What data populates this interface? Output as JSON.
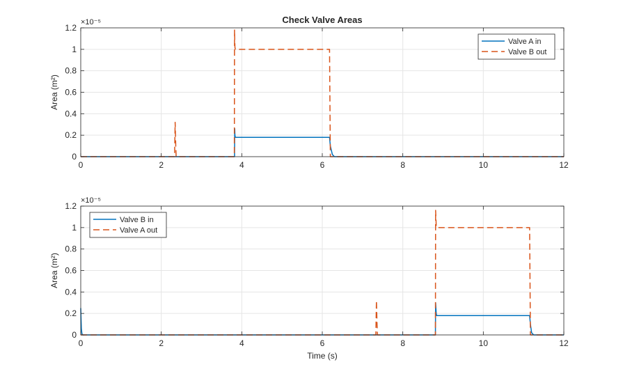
{
  "figure": {
    "title": "Check Valve Areas",
    "xlabel": "Time (s)"
  },
  "chart_data": [
    {
      "type": "line",
      "title": "Check Valve Areas",
      "xlabel": "",
      "ylabel": "Area  (m²)",
      "y_exponent": "×10⁻⁵",
      "xlim": [
        0,
        12
      ],
      "ylim": [
        0,
        1.2
      ],
      "xticks": [
        "0",
        "2",
        "4",
        "6",
        "8",
        "10",
        "12"
      ],
      "yticks": [
        "0",
        "0.2",
        "0.4",
        "0.6",
        "0.8",
        "1",
        "1.2"
      ],
      "grid": true,
      "legend_position": "top-right",
      "series": [
        {
          "name": "Valve A in",
          "color": "#0072BD",
          "style": "solid",
          "x": [
            0,
            3.82,
            3.825,
            3.83,
            3.84,
            6.18,
            6.2,
            6.25,
            6.3,
            12
          ],
          "y": [
            0,
            0,
            0.26,
            0.2,
            0.18,
            0.18,
            0.1,
            0.02,
            0,
            0
          ]
        },
        {
          "name": "Valve B out",
          "color": "#D95319",
          "style": "dashed",
          "x": [
            0,
            2.33,
            2.345,
            2.36,
            2.37,
            3.815,
            3.82,
            3.83,
            3.84,
            6.18,
            6.19,
            6.2,
            12
          ],
          "y": [
            0,
            0,
            0.32,
            0.1,
            0,
            0,
            1.18,
            1.02,
            1.0,
            1.0,
            0.5,
            0,
            0
          ]
        }
      ]
    },
    {
      "type": "line",
      "title": "",
      "xlabel": "Time (s)",
      "ylabel": "Area  (m²)",
      "y_exponent": "×10⁻⁵",
      "xlim": [
        0,
        12
      ],
      "ylim": [
        0,
        1.2
      ],
      "xticks": [
        "0",
        "2",
        "4",
        "6",
        "8",
        "10",
        "12"
      ],
      "yticks": [
        "0",
        "0.2",
        "0.4",
        "0.6",
        "0.8",
        "1",
        "1.2"
      ],
      "grid": true,
      "legend_position": "top-left",
      "series": [
        {
          "name": "Valve B in",
          "color": "#0072BD",
          "style": "solid",
          "x": [
            0,
            0.005,
            0.015,
            0.03,
            0.05,
            8.81,
            8.815,
            8.83,
            8.84,
            11.15,
            11.17,
            11.2,
            11.25,
            12
          ],
          "y": [
            0.25,
            0.18,
            0.06,
            0.01,
            0,
            0,
            0.3,
            0.2,
            0.18,
            0.18,
            0.1,
            0.02,
            0,
            0
          ]
        },
        {
          "name": "Valve A out",
          "color": "#D95319",
          "style": "dashed",
          "x": [
            0,
            7.33,
            7.345,
            7.36,
            7.37,
            8.81,
            8.815,
            8.83,
            8.84,
            11.15,
            11.16,
            11.17,
            12
          ],
          "y": [
            0,
            0,
            0.32,
            0.1,
            0,
            0,
            1.16,
            1.02,
            1.0,
            1.0,
            0.5,
            0,
            0
          ]
        }
      ]
    }
  ]
}
